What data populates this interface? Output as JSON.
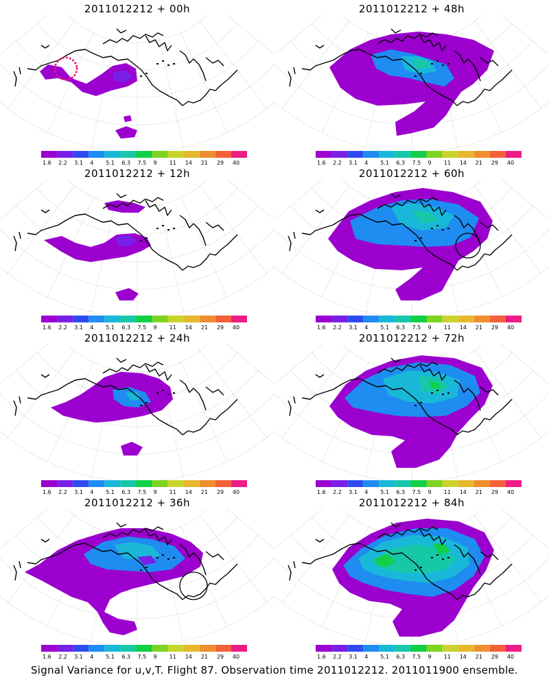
{
  "panels": [
    {
      "title": "2011012212 + 00h",
      "circle": "dotted"
    },
    {
      "title": "2011012212 + 48h",
      "circle": null
    },
    {
      "title": "2011012212 + 12h",
      "circle": null
    },
    {
      "title": "2011012212 + 60h",
      "circle": "solid"
    },
    {
      "title": "2011012212 + 24h",
      "circle": null
    },
    {
      "title": "2011012212 + 72h",
      "circle": null
    },
    {
      "title": "2011012212 + 36h",
      "circle": "solid"
    },
    {
      "title": "2011012212 + 84h",
      "circle": null
    }
  ],
  "colorbar": {
    "labels": [
      "1.6",
      "2.2",
      "3.1",
      "4",
      "5.1",
      "6.3",
      "7.5",
      "9",
      "11",
      "14",
      "21",
      "29",
      "40"
    ],
    "colors": [
      "#9b00cf",
      "#7a1fe6",
      "#2f4bf0",
      "#1e8cf0",
      "#19b8d8",
      "#16c8a8",
      "#12cf45",
      "#7ed321",
      "#c8d42a",
      "#e6b82e",
      "#ef8e2e",
      "#f3603a",
      "#ee1c86"
    ]
  },
  "footer": "Signal Variance for u,v,T. Flight 87. Observation time 2011012212. 2011011900 ensemble."
}
